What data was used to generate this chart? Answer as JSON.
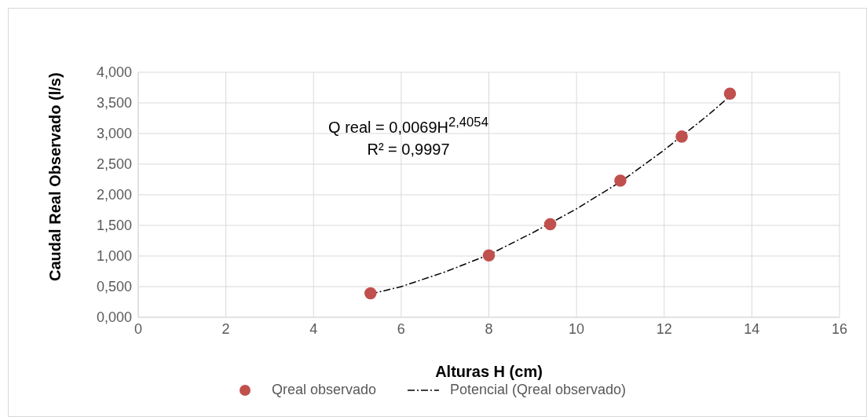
{
  "chart_data": {
    "type": "scatter",
    "xlabel": "Alturas H (cm)",
    "ylabel": "Caudal Real Observado (l/s)",
    "series": [
      {
        "name": "Qreal observado",
        "color": "#c0504d",
        "marker": "circle",
        "x": [
          5.3,
          8,
          9.4,
          11,
          12.4,
          13.5
        ],
        "values": [
          0.39,
          1.01,
          1.52,
          2.23,
          2.95,
          3.65
        ]
      },
      {
        "name": "Potencial (Qreal observado)",
        "type": "line",
        "color": "#000000",
        "line_style": "dashdot",
        "marker": "none",
        "x": [
          5.3,
          6,
          7,
          8,
          9,
          10,
          11,
          12,
          13,
          13.5
        ],
        "values": [
          0.38,
          0.5,
          0.74,
          1.02,
          1.38,
          1.77,
          2.21,
          2.73,
          3.3,
          3.61
        ]
      }
    ],
    "xlim": [
      0,
      16
    ],
    "xticks": [
      0,
      2,
      4,
      6,
      8,
      10,
      12,
      14,
      16
    ],
    "ylim": [
      0,
      4
    ],
    "yticks": [
      {
        "value": 0,
        "label": "0,000"
      },
      {
        "value": 0.5,
        "label": "0,500"
      },
      {
        "value": 1,
        "label": "1,000"
      },
      {
        "value": 1.5,
        "label": "1,500"
      },
      {
        "value": 2,
        "label": "2,000"
      },
      {
        "value": 2.5,
        "label": "2,500"
      },
      {
        "value": 3,
        "label": "3,000"
      },
      {
        "value": 3.5,
        "label": "3,500"
      },
      {
        "value": 4,
        "label": "4,000"
      }
    ],
    "grid": true,
    "legend": "bottom",
    "annotations": [
      "Q real = 0,0069H$^{2,4054}$",
      "R² = 0,9997"
    ]
  }
}
